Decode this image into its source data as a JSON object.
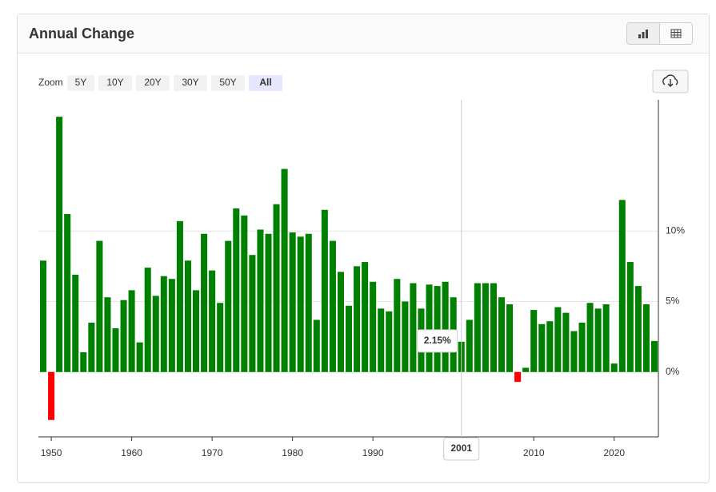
{
  "header": {
    "title": "Annual Change"
  },
  "zoom": {
    "label": "Zoom",
    "options": [
      "5Y",
      "10Y",
      "20Y",
      "30Y",
      "50Y",
      "All"
    ],
    "active": "All"
  },
  "chart_data": {
    "type": "bar",
    "x": [
      1949,
      1950,
      1951,
      1952,
      1953,
      1954,
      1955,
      1956,
      1957,
      1958,
      1959,
      1960,
      1961,
      1962,
      1963,
      1964,
      1965,
      1966,
      1967,
      1968,
      1969,
      1970,
      1971,
      1972,
      1973,
      1974,
      1975,
      1976,
      1977,
      1978,
      1979,
      1980,
      1981,
      1982,
      1983,
      1984,
      1985,
      1986,
      1987,
      1988,
      1989,
      1990,
      1991,
      1992,
      1993,
      1994,
      1995,
      1996,
      1997,
      1998,
      1999,
      2000,
      2001,
      2002,
      2003,
      2004,
      2005,
      2006,
      2007,
      2008,
      2009,
      2010,
      2011,
      2012,
      2013,
      2014,
      2015,
      2016,
      2017,
      2018,
      2019,
      2020,
      2021,
      2022,
      2023,
      2024,
      2025
    ],
    "values": [
      7.9,
      -3.4,
      18.1,
      11.2,
      6.9,
      1.4,
      3.5,
      9.3,
      5.3,
      3.1,
      5.1,
      5.8,
      2.1,
      7.4,
      5.4,
      6.8,
      6.6,
      10.7,
      7.9,
      5.8,
      9.8,
      7.2,
      4.9,
      9.3,
      11.6,
      11.1,
      8.3,
      10.1,
      9.8,
      11.9,
      14.4,
      9.9,
      9.6,
      9.8,
      3.7,
      11.5,
      9.3,
      7.1,
      4.7,
      7.5,
      7.8,
      6.4,
      4.5,
      4.3,
      6.6,
      5.0,
      6.3,
      4.5,
      6.2,
      6.1,
      6.4,
      5.3,
      2.15,
      3.7,
      6.3,
      6.3,
      6.3,
      5.3,
      4.8,
      -0.7,
      0.3,
      4.4,
      3.4,
      3.6,
      4.6,
      4.2,
      2.9,
      3.5,
      4.9,
      4.5,
      4.8,
      0.6,
      12.2,
      7.8,
      6.1,
      4.8,
      2.2
    ],
    "color": "#008000",
    "negative_color": "#ff0000",
    "xlim": [
      1948.4,
      2025.5
    ],
    "xticks": [
      1950,
      1960,
      1970,
      1980,
      1990,
      2000,
      2010,
      2020
    ],
    "ylim": [
      -4.6,
      19.3
    ],
    "yticks": [
      {
        "value": 0,
        "label": "0%"
      },
      {
        "value": 5,
        "label": "5%"
      },
      {
        "value": 10,
        "label": "10%"
      }
    ],
    "grid": true,
    "tooltip": {
      "x_label": "2001",
      "value_label": "2.15%"
    }
  }
}
